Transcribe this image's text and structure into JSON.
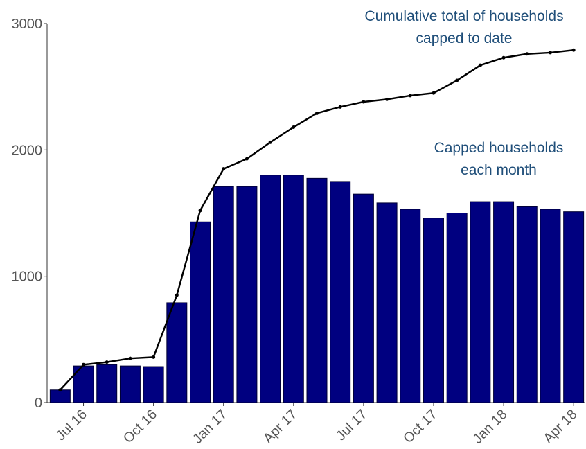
{
  "chart_data": {
    "type": "bar",
    "categories": [
      null,
      "Jul 16",
      null,
      null,
      "Oct 16",
      null,
      null,
      "Jan 17",
      null,
      null,
      "Apr 17",
      null,
      null,
      "Jul 17",
      null,
      null,
      "Oct 17",
      null,
      null,
      "Jan 18",
      null,
      null,
      "Apr 18"
    ],
    "series": [
      {
        "type": "bar",
        "color": "#000080",
        "values": [
          100,
          290,
          300,
          290,
          285,
          790,
          1430,
          1710,
          1710,
          1800,
          1800,
          1775,
          1750,
          1650,
          1580,
          1530,
          1460,
          1500,
          1590,
          1590,
          1550,
          1530,
          1510
        ]
      },
      {
        "type": "line",
        "color": "#000000",
        "values": [
          100,
          300,
          320,
          350,
          360,
          850,
          1520,
          1850,
          1930,
          2060,
          2180,
          2290,
          2340,
          2380,
          2400,
          2430,
          2450,
          2550,
          2670,
          2730,
          2760,
          2770,
          2790
        ]
      }
    ],
    "ylim": [
      0,
      3000
    ],
    "yticks": [
      0,
      1000,
      2000,
      3000
    ],
    "annotations": [
      {
        "lines": [
          "Cumulative total of households",
          "capped to date"
        ]
      },
      {
        "lines": [
          "Capped households",
          "each month"
        ]
      }
    ]
  }
}
